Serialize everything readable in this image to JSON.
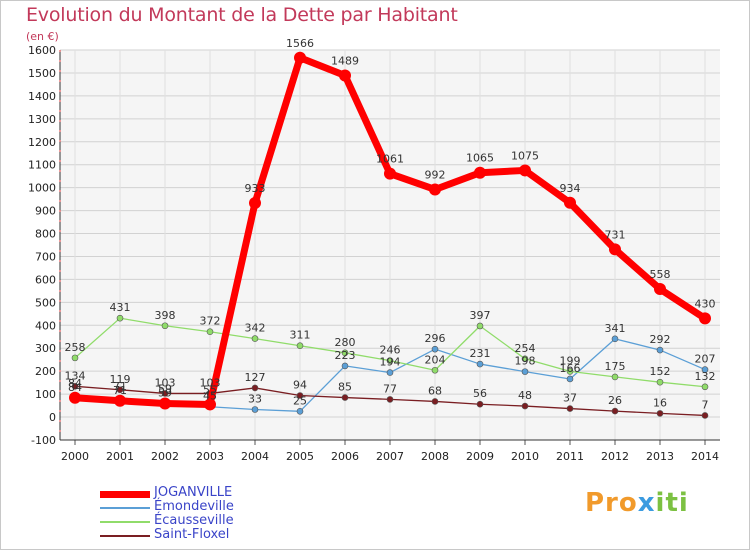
{
  "title": "Evolution du Montant de la Dette par Habitant",
  "unit": "(en €)",
  "logo": {
    "part1": "Pro",
    "part2": "x",
    "part3": "iti"
  },
  "chart_data": {
    "type": "line",
    "x": [
      2000,
      2001,
      2002,
      2003,
      2004,
      2005,
      2006,
      2007,
      2008,
      2009,
      2010,
      2011,
      2012,
      2013,
      2014
    ],
    "ylim": [
      -100,
      1600
    ],
    "yticks": [
      -100,
      0,
      100,
      200,
      300,
      400,
      500,
      600,
      700,
      800,
      900,
      1000,
      1100,
      1200,
      1300,
      1400,
      1500,
      1600
    ],
    "grid": true,
    "legend_position": "bottom-left",
    "series": [
      {
        "name": "JOGANVILLE",
        "color": "#ff0000",
        "width": 7,
        "marker": 6,
        "values": [
          84,
          71,
          59,
          55,
          933,
          1566,
          1489,
          1061,
          992,
          1065,
          1075,
          934,
          731,
          558,
          430
        ],
        "labels": [
          "84",
          "71",
          "59",
          "55",
          "933",
          "1566",
          "1489",
          "1061",
          "992",
          "1065",
          "1075",
          "934",
          "731",
          "558",
          "430"
        ]
      },
      {
        "name": "Émondeville",
        "color": "#5b9fd6",
        "width": 1.3,
        "marker": 3,
        "values": [
          84,
          71,
          59,
          45,
          33,
          25,
          223,
          194,
          296,
          231,
          198,
          166,
          341,
          292,
          207
        ],
        "labels": [
          "84",
          "71",
          "59",
          "45",
          "33",
          "25",
          "223",
          "194",
          "296",
          "231",
          "198",
          "166",
          "341",
          "292",
          "207"
        ]
      },
      {
        "name": "Écausseville",
        "color": "#90dc6a",
        "width": 1.3,
        "marker": 3,
        "values": [
          258,
          431,
          398,
          372,
          342,
          311,
          280,
          246,
          204,
          397,
          254,
          199,
          175,
          152,
          132
        ],
        "labels": [
          "258",
          "431",
          "398",
          "372",
          "342",
          "311",
          "280",
          "246",
          "204",
          "397",
          "254",
          "199",
          "175",
          "152",
          "132"
        ]
      },
      {
        "name": "Saint-Floxel",
        "color": "#7a1e22",
        "width": 1.3,
        "marker": 3,
        "values": [
          134,
          119,
          103,
          103,
          127,
          94,
          85,
          77,
          68,
          56,
          48,
          37,
          26,
          16,
          7
        ],
        "labels": [
          "134",
          "119",
          "103",
          "103",
          "127",
          "94",
          "85",
          "77",
          "68",
          "56",
          "48",
          "37",
          "26",
          "16",
          "7"
        ]
      }
    ]
  }
}
